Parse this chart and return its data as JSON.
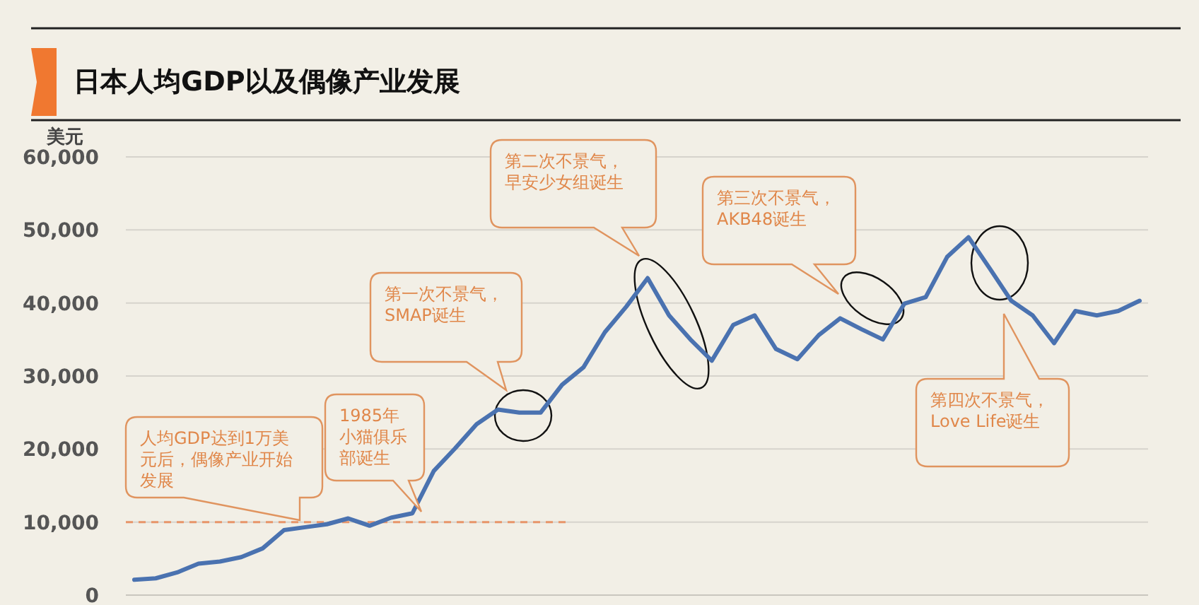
{
  "chart_data": {
    "type": "line",
    "title": "日本人均GDP以及偶像产业发展",
    "ylabel": "美元",
    "categories": [
      null,
      null,
      null,
      null,
      null,
      null,
      null,
      null,
      null,
      null,
      null,
      null,
      null,
      null,
      null,
      null,
      null,
      null,
      null,
      null,
      null,
      null,
      null,
      null,
      null,
      null,
      null,
      null,
      null,
      null,
      null,
      null,
      null,
      null,
      null,
      null,
      null,
      null,
      null,
      null,
      null,
      null,
      null,
      null,
      null,
      null,
      null,
      null
    ],
    "series": [
      {
        "color": "#4a72b0",
        "values": [
          2100,
          2300,
          3100,
          4300,
          4600,
          5200,
          6400,
          8900,
          9300,
          9700,
          10500,
          9500,
          10600,
          11200,
          17000,
          20100,
          23400,
          25400,
          25000,
          25000,
          28800,
          31200,
          36000,
          39500,
          43400,
          38300,
          35000,
          32100,
          37000,
          38300,
          33700,
          32300,
          35600,
          37900,
          36400,
          35000,
          39900,
          40800,
          46300,
          49000,
          44700,
          40300,
          38300,
          34500,
          38900,
          38300,
          38900,
          40300
        ]
      }
    ],
    "ylim": [
      0,
      60000
    ],
    "yticks": [
      {
        "value": 0,
        "label": "0"
      },
      {
        "value": 10000,
        "label": "10,000"
      },
      {
        "value": 20000,
        "label": "20,000"
      },
      {
        "value": 30000,
        "label": "30,000"
      },
      {
        "value": 40000,
        "label": "40,000"
      },
      {
        "value": 50000,
        "label": "50,000"
      },
      {
        "value": 60000,
        "label": "60,000"
      }
    ],
    "tick_labels": "y",
    "grid": "y",
    "line_style": "solid",
    "marker": "none",
    "ref_lines": [
      {
        "axis": "y",
        "value": 10000,
        "color": "#e8956a",
        "line_style": "dashed"
      }
    ],
    "annotations": [
      "人均GDP达到1万美元后，偶像产业开始发展",
      "1985年小猫俱乐部诞生",
      "第一次不景气，SMAP诞生",
      "第二次不景气，早安少女组诞生",
      "第三次不景气，AKB48诞生",
      "第四次不景气，Love Life诞生"
    ]
  }
}
